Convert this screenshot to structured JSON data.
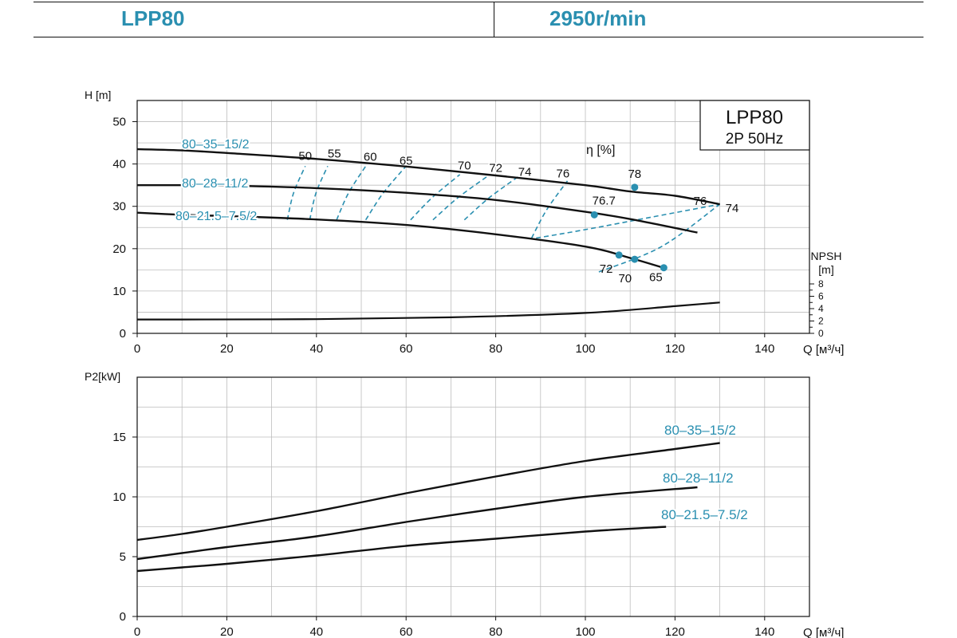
{
  "header": {
    "model": "LPP80",
    "speed": "2950r/min"
  },
  "colors": {
    "accent": "#2a8fb0",
    "curve": "#111111",
    "grid": "#bdbdbd"
  },
  "chart_data": [
    {
      "type": "line",
      "ylabel": "H [m]",
      "xlabel": "Q [м³/ч]",
      "xlim": [
        0,
        150
      ],
      "ylim": [
        0,
        55
      ],
      "xticks": [
        0,
        20,
        40,
        60,
        80,
        100,
        120,
        140
      ],
      "xtick_labels": [
        "0",
        "20",
        "40",
        "60",
        "80",
        "100",
        "120",
        "140"
      ],
      "yticks": [
        0,
        10,
        20,
        30,
        40,
        50
      ],
      "ytick_labels": [
        "0",
        "10",
        "20",
        "30",
        "40",
        "50"
      ],
      "grid": true,
      "legend_box": {
        "title": "LPP80",
        "subtitle": "2P  50Hz",
        "position": "top-right"
      },
      "efficiency_label": "η [%]",
      "series": [
        {
          "name": "80–35–15/2",
          "x": [
            0,
            10,
            20,
            40,
            60,
            80,
            100,
            110,
            120,
            130
          ],
          "y": [
            43.5,
            43.2,
            42.6,
            41.2,
            39.4,
            37.3,
            35.0,
            33.5,
            32.5,
            30.5
          ]
        },
        {
          "name": "80–28–11/2",
          "x": [
            0,
            10,
            20,
            40,
            60,
            80,
            100,
            110,
            125
          ],
          "y": [
            35.0,
            35.0,
            34.9,
            34.3,
            33.2,
            31.5,
            28.7,
            27.0,
            23.8
          ]
        },
        {
          "name": "80–21.5–7.5/2",
          "x": [
            0,
            10,
            20,
            40,
            60,
            80,
            100,
            110,
            118
          ],
          "y": [
            28.5,
            28.0,
            27.7,
            26.9,
            25.6,
            23.4,
            20.5,
            17.8,
            15.3
          ]
        }
      ],
      "npsh": {
        "axis_label": "NPSH",
        "axis_unit": "[m]",
        "ticks": [
          0,
          2,
          4,
          6,
          8
        ],
        "tick_labels": [
          "0",
          "2",
          "4",
          "6",
          "8"
        ],
        "x": [
          0,
          10,
          40,
          70,
          100,
          120,
          130
        ],
        "y": [
          2.25,
          2.25,
          2.3,
          2.6,
          3.3,
          4.4,
          5.0
        ]
      },
      "efficiency_contours": [
        {
          "label": "50",
          "x": [
            33.5,
            37.5
          ],
          "y": [
            26.8,
            39.5
          ]
        },
        {
          "label": "55",
          "x": [
            38.5,
            42.5
          ],
          "y": [
            26.8,
            39.5
          ]
        },
        {
          "label": "60",
          "x": [
            44.5,
            51
          ],
          "y": [
            26.8,
            39.5
          ]
        },
        {
          "label": "65",
          "x": [
            51,
            60
          ],
          "y": [
            26.8,
            39.5
          ]
        },
        {
          "label": "70",
          "x": [
            61,
            72
          ],
          "y": [
            26.8,
            37.5
          ]
        },
        {
          "label": "72",
          "x": [
            66,
            78
          ],
          "y": [
            26.8,
            37
          ]
        },
        {
          "label": "74",
          "x": [
            73,
            85
          ],
          "y": [
            26.8,
            37
          ]
        },
        {
          "label": "76",
          "x": [
            88,
            96
          ],
          "y": [
            22.5,
            36
          ]
        }
      ],
      "efficiency_dots": [
        {
          "label": "78",
          "x": 111,
          "y": 34.5
        },
        {
          "label": "76.7",
          "x": 102,
          "y": 28.0
        },
        {
          "label": "72",
          "x": 107.5,
          "y": 18.5
        },
        {
          "label": "70",
          "x": 111,
          "y": 17.5
        },
        {
          "label": "65",
          "x": 117.5,
          "y": 15.5
        }
      ],
      "efficiency_markers": [
        "76",
        "74"
      ]
    },
    {
      "type": "line",
      "ylabel": "P2[kW]",
      "xlabel": "Q [м³/ч]",
      "xlim": [
        0,
        150
      ],
      "ylim": [
        0,
        20
      ],
      "xticks": [
        0,
        20,
        40,
        60,
        80,
        100,
        120,
        140
      ],
      "xtick_labels": [
        "0",
        "20",
        "40",
        "60",
        "80",
        "100",
        "120",
        "140"
      ],
      "yticks": [
        0,
        5,
        10,
        15
      ],
      "ytick_labels": [
        "0",
        "5",
        "10",
        "15"
      ],
      "grid": true,
      "series": [
        {
          "name": "80–35–15/2",
          "x": [
            0,
            10,
            20,
            40,
            60,
            80,
            100,
            120,
            130
          ],
          "y": [
            6.4,
            6.9,
            7.5,
            8.8,
            10.3,
            11.7,
            13.0,
            14.0,
            14.5
          ]
        },
        {
          "name": "80–28–11/2",
          "x": [
            0,
            10,
            20,
            40,
            60,
            80,
            100,
            125
          ],
          "y": [
            4.8,
            5.3,
            5.8,
            6.7,
            7.9,
            9.0,
            10.0,
            10.8
          ]
        },
        {
          "name": "80–21.5–7.5/2",
          "x": [
            0,
            10,
            20,
            40,
            60,
            80,
            100,
            118
          ],
          "y": [
            3.8,
            4.1,
            4.4,
            5.1,
            5.9,
            6.5,
            7.1,
            7.5
          ]
        }
      ]
    }
  ]
}
